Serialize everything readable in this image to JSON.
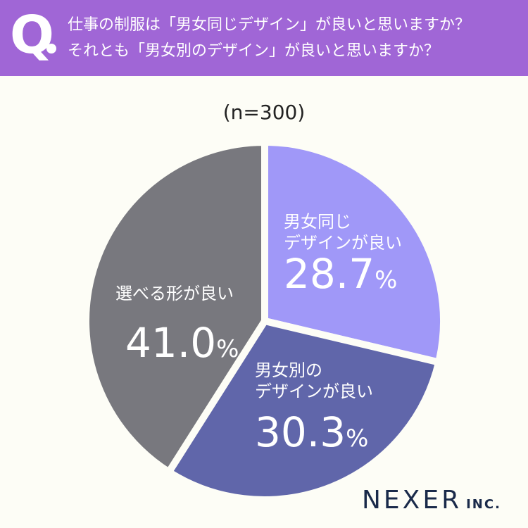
{
  "header": {
    "q_mark": "Q",
    "question_line1": "仕事の制服は「男女同じデザイン」が良いと思いますか？",
    "question_line2": "それとも「男女別のデザイン」が良いと思いますか？"
  },
  "sample_size": "(n=300)",
  "chart_data": {
    "type": "pie",
    "start_angle_deg": 0,
    "direction": "clockwise",
    "slices": [
      {
        "label_line1": "男女同じ",
        "label_line2": "デザインが良い",
        "value": 28.7,
        "pct_number": "28.7",
        "color": "#a098f8"
      },
      {
        "label_line1": "男女別の",
        "label_line2": "デザインが良い",
        "value": 30.3,
        "pct_number": "30.3",
        "color": "#6066aa"
      },
      {
        "label_line1": "選べる形が良い",
        "label_line2": "",
        "value": 41.0,
        "pct_number": "41.0",
        "color": "#78787e"
      }
    ],
    "pct_sign": "%"
  },
  "logo": {
    "main": "NEXER",
    "sub": "INC."
  },
  "colors": {
    "banner": "#a066d6",
    "background": "#fdfdf6",
    "slice_border": "#fdfdf6"
  }
}
